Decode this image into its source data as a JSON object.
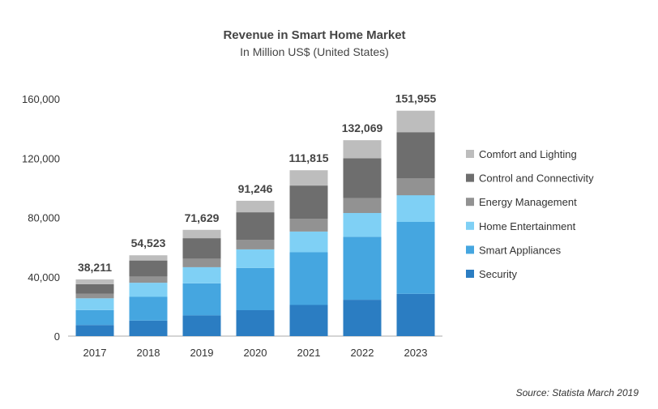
{
  "chart_data": {
    "type": "bar",
    "stacked": true,
    "title": "Revenue in Smart Home Market",
    "subtitle": "In Million US$ (United States)",
    "xlabel": "",
    "ylabel": "",
    "categories": [
      "2017",
      "2018",
      "2019",
      "2020",
      "2021",
      "2022",
      "2023"
    ],
    "ylim": [
      0,
      160000
    ],
    "y_ticks": [
      0,
      40000,
      80000,
      120000,
      160000
    ],
    "y_tick_labels": [
      "0",
      "40,000",
      "80,000",
      "120,000",
      "160,000"
    ],
    "grid": false,
    "legend_position": "right",
    "totals": [
      38211,
      54523,
      71629,
      91246,
      111815,
      132069,
      151955
    ],
    "total_labels": [
      "38,211",
      "54,523",
      "71,629",
      "91,246",
      "111,815",
      "132,069",
      "151,955"
    ],
    "series": [
      {
        "name": "Security",
        "color": "#2b7dc2",
        "values": [
          7500,
          10500,
          14000,
          17500,
          21000,
          24500,
          28500
        ]
      },
      {
        "name": "Smart Appliances",
        "color": "#45a6e0",
        "values": [
          10000,
          16000,
          21500,
          28500,
          35500,
          42500,
          48500
        ]
      },
      {
        "name": "Home Entertainment",
        "color": "#7fd0f5",
        "values": [
          8000,
          9500,
          11000,
          12500,
          14000,
          16000,
          18000
        ]
      },
      {
        "name": "Energy Management",
        "color": "#929292",
        "values": [
          3000,
          4000,
          5500,
          6500,
          8500,
          10000,
          11500
        ]
      },
      {
        "name": "Control and Connectivity",
        "color": "#6e6e6e",
        "values": [
          6500,
          11000,
          14000,
          18500,
          22500,
          27000,
          31000
        ]
      },
      {
        "name": "Comfort and Lighting",
        "color": "#bdbdbd",
        "values": [
          3211,
          3523,
          5629,
          7746,
          10315,
          12069,
          14455
        ]
      }
    ],
    "legend_order": [
      5,
      4,
      3,
      2,
      1,
      0
    ],
    "source": "Source: Statista March 2019"
  }
}
